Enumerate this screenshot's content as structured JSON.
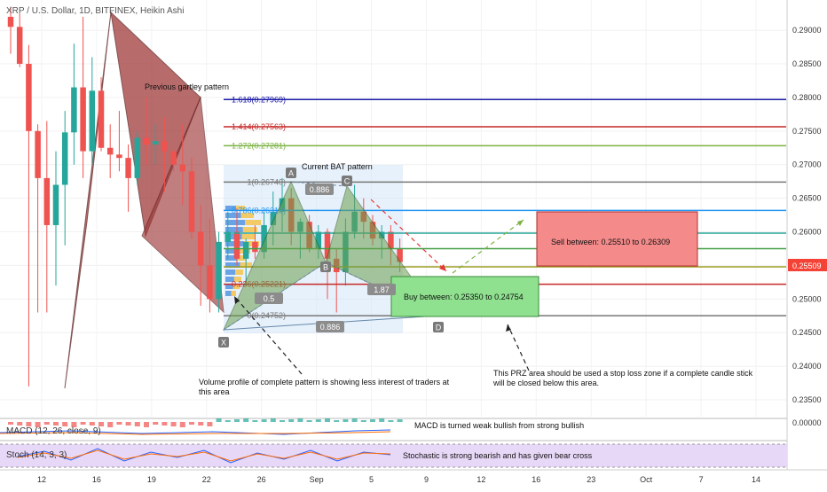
{
  "header": {
    "symbol_title": "XRP / U.S. Dollar, 1D, BITFINEX, Heikin Ashi"
  },
  "chart_data": {
    "type": "candlestick",
    "ylim": [
      0.2325,
      0.2945
    ],
    "price_ticks": [
      "0.29000",
      "0.28500",
      "0.28000",
      "0.27500",
      "0.27000",
      "0.26500",
      "0.26000",
      "0.25500",
      "0.25000",
      "0.24500",
      "0.24000",
      "0.23500"
    ],
    "last_price": "0.25509",
    "x_ticks": [
      "12",
      "16",
      "19",
      "22",
      "26",
      "Sep",
      "5",
      "9",
      "12",
      "16",
      "23",
      "Oct",
      "7",
      "14"
    ],
    "candles": [
      {
        "o": 0.292,
        "h": 0.2935,
        "l": 0.2865,
        "c": 0.2905
      },
      {
        "o": 0.2905,
        "h": 0.2925,
        "l": 0.2845,
        "c": 0.285
      },
      {
        "o": 0.285,
        "h": 0.2878,
        "l": 0.237,
        "c": 0.275
      },
      {
        "o": 0.275,
        "h": 0.276,
        "l": 0.248,
        "c": 0.268
      },
      {
        "o": 0.268,
        "h": 0.2765,
        "l": 0.248,
        "c": 0.261
      },
      {
        "o": 0.261,
        "h": 0.272,
        "l": 0.252,
        "c": 0.267
      },
      {
        "o": 0.267,
        "h": 0.278,
        "l": 0.258,
        "c": 0.2748
      },
      {
        "o": 0.2748,
        "h": 0.288,
        "l": 0.27,
        "c": 0.2815
      },
      {
        "o": 0.2815,
        "h": 0.292,
        "l": 0.268,
        "c": 0.272
      },
      {
        "o": 0.272,
        "h": 0.286,
        "l": 0.27,
        "c": 0.281
      },
      {
        "o": 0.281,
        "h": 0.283,
        "l": 0.272,
        "c": 0.2725
      },
      {
        "o": 0.2725,
        "h": 0.276,
        "l": 0.268,
        "c": 0.2715
      },
      {
        "o": 0.2715,
        "h": 0.278,
        "l": 0.269,
        "c": 0.271
      },
      {
        "o": 0.271,
        "h": 0.273,
        "l": 0.263,
        "c": 0.268
      },
      {
        "o": 0.268,
        "h": 0.275,
        "l": 0.267,
        "c": 0.274
      },
      {
        "o": 0.274,
        "h": 0.28,
        "l": 0.27,
        "c": 0.273
      },
      {
        "o": 0.273,
        "h": 0.276,
        "l": 0.27,
        "c": 0.2735
      },
      {
        "o": 0.2735,
        "h": 0.277,
        "l": 0.266,
        "c": 0.272
      },
      {
        "o": 0.272,
        "h": 0.274,
        "l": 0.269,
        "c": 0.27
      },
      {
        "o": 0.27,
        "h": 0.276,
        "l": 0.264,
        "c": 0.269
      },
      {
        "o": 0.269,
        "h": 0.271,
        "l": 0.259,
        "c": 0.26
      },
      {
        "o": 0.26,
        "h": 0.264,
        "l": 0.249,
        "c": 0.255
      },
      {
        "o": 0.255,
        "h": 0.262,
        "l": 0.248,
        "c": 0.25
      },
      {
        "o": 0.25,
        "h": 0.26,
        "l": 0.248,
        "c": 0.2585
      },
      {
        "o": 0.2585,
        "h": 0.263,
        "l": 0.256,
        "c": 0.26
      },
      {
        "o": 0.26,
        "h": 0.2635,
        "l": 0.255,
        "c": 0.256
      },
      {
        "o": 0.256,
        "h": 0.259,
        "l": 0.252,
        "c": 0.2585
      },
      {
        "o": 0.2585,
        "h": 0.261,
        "l": 0.256,
        "c": 0.257
      },
      {
        "o": 0.257,
        "h": 0.263,
        "l": 0.256,
        "c": 0.261
      },
      {
        "o": 0.261,
        "h": 0.266,
        "l": 0.258,
        "c": 0.263
      },
      {
        "o": 0.263,
        "h": 0.268,
        "l": 0.26,
        "c": 0.265
      },
      {
        "o": 0.265,
        "h": 0.2665,
        "l": 0.258,
        "c": 0.26
      },
      {
        "o": 0.26,
        "h": 0.262,
        "l": 0.256,
        "c": 0.2615
      },
      {
        "o": 0.2615,
        "h": 0.2625,
        "l": 0.257,
        "c": 0.2575
      },
      {
        "o": 0.2575,
        "h": 0.261,
        "l": 0.256,
        "c": 0.26
      },
      {
        "o": 0.26,
        "h": 0.2605,
        "l": 0.25,
        "c": 0.256
      },
      {
        "o": 0.256,
        "h": 0.2575,
        "l": 0.248,
        "c": 0.254
      },
      {
        "o": 0.254,
        "h": 0.262,
        "l": 0.252,
        "c": 0.26
      },
      {
        "o": 0.26,
        "h": 0.267,
        "l": 0.259,
        "c": 0.263
      },
      {
        "o": 0.263,
        "h": 0.265,
        "l": 0.259,
        "c": 0.2615
      },
      {
        "o": 0.2615,
        "h": 0.2625,
        "l": 0.258,
        "c": 0.259
      },
      {
        "o": 0.259,
        "h": 0.261,
        "l": 0.256,
        "c": 0.26
      },
      {
        "o": 0.26,
        "h": 0.261,
        "l": 0.255,
        "c": 0.2575
      },
      {
        "o": 0.2575,
        "h": 0.259,
        "l": 0.254,
        "c": 0.2555
      }
    ],
    "fib_levels": [
      {
        "label": "1.618(0.27969)",
        "value": 0.27969,
        "color": "#1a1aa8"
      },
      {
        "label": "1.414(0.27563)",
        "value": 0.27563,
        "color": "#c62828"
      },
      {
        "label": "1.272(0.27281)",
        "value": 0.27281,
        "color": "#7cb342"
      },
      {
        "label": "1(0.26740)",
        "value": 0.2674,
        "color": "#777777"
      },
      {
        "label": "0.786(0.26319)",
        "value": 0.26319,
        "color": "#2196f3"
      },
      {
        "label": "",
        "value": 0.2598,
        "color": "#26a69a"
      },
      {
        "label": "",
        "value": 0.2575,
        "color": "#43a047"
      },
      {
        "label": "",
        "value": 0.2548,
        "color": "#9e9d24"
      },
      {
        "label": "0.236(0.25221)",
        "value": 0.25221,
        "color": "#c62828"
      },
      {
        "label": "0(0.24752)",
        "value": 0.24752,
        "color": "#777777"
      }
    ],
    "pattern_points": [
      "X",
      "A",
      "B",
      "C",
      "D"
    ],
    "ratio_labels": [
      "0.886",
      "0.5",
      "1.87",
      "0.886"
    ]
  },
  "annotations": {
    "previous_gartley": "Previous gartley pattern",
    "current_bat": "Current BAT pattern",
    "sell_box": "Sell between: 0.25510 to 0.26309",
    "buy_box": "Buy between: 0.25350 to 0.24754",
    "volume_note": "Volume profile of complete pattern is showing less interest of traders at this area",
    "prz_note": "This PRZ area should be used a stop loss zone if a complete candle stick will be closed below this area.",
    "macd_note": "MACD is turned weak bullish from strong bullish",
    "stoch_note": "Stochastic is strong bearish and has given bear cross"
  },
  "indicators": {
    "macd_label": "MACD (12, 26, close, 9)",
    "macd_tick": "0.00000",
    "stoch_label": "Stoch (14, 3, 3)"
  },
  "colors": {
    "up": "#26a69a",
    "down": "#ef5350",
    "last_price": "#f44336",
    "bat_fill": "#6b9e4e",
    "gartley_fill": "#a03a3a",
    "sell_box": "#f48a8a",
    "buy_box": "#8fe08f",
    "stoch_bg": "#e8d8f8"
  }
}
